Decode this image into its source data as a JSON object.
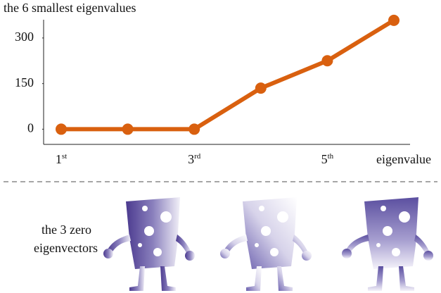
{
  "chart_data": {
    "type": "line",
    "title": "the 6 smallest eigenvalues",
    "x_label": "eigenvalue",
    "categories": [
      "1st",
      null,
      "3rd",
      null,
      "5th",
      null
    ],
    "series": [
      {
        "name": "eigenvalues",
        "color": "#d9600f",
        "values": [
          0,
          0,
          0,
          135,
          225,
          358
        ]
      }
    ],
    "ylim": [
      -50,
      360
    ],
    "yticks": [
      0,
      150,
      300
    ]
  },
  "caption": {
    "lines": [
      "the 3 zero",
      "eigenvectors"
    ]
  }
}
